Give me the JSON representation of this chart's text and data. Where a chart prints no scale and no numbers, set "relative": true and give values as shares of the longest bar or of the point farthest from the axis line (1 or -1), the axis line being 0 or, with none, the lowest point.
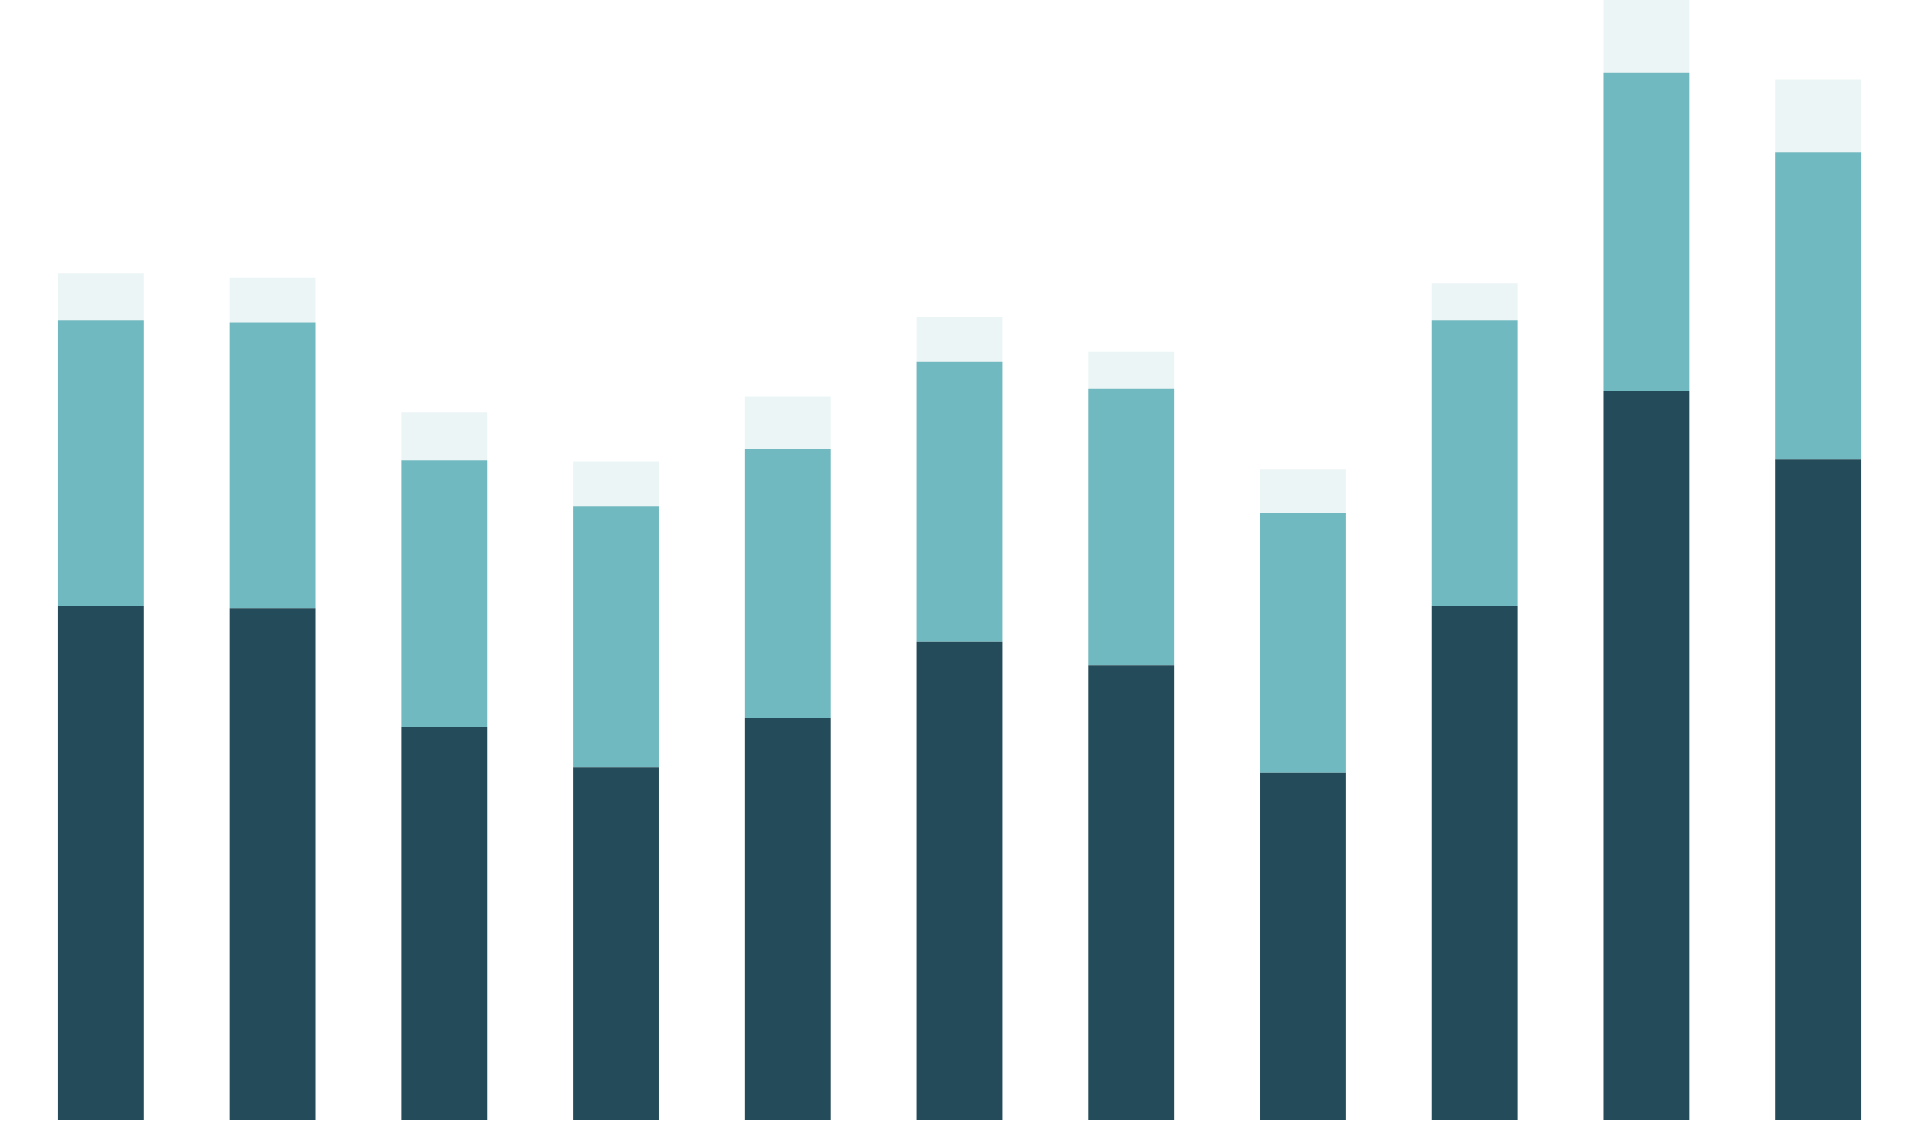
{
  "chart_data": {
    "type": "bar",
    "stacked": true,
    "relative": true,
    "categories": [
      null,
      null,
      null,
      null,
      null,
      null,
      null,
      null,
      null,
      null,
      null
    ],
    "series": [
      {
        "color": "#244b5a",
        "values": [
          0.459,
          0.457,
          0.351,
          0.315,
          0.359,
          0.427,
          0.406,
          0.31,
          0.459,
          0.651,
          0.59
        ]
      },
      {
        "color": "#70b9c0",
        "values": [
          0.255,
          0.255,
          0.238,
          0.233,
          0.24,
          0.25,
          0.247,
          0.232,
          0.255,
          0.284,
          0.274
        ]
      },
      {
        "color": "#ecf5f6",
        "values": [
          0.042,
          0.04,
          0.043,
          0.04,
          0.047,
          0.04,
          0.033,
          0.039,
          0.033,
          0.065,
          0.065
        ]
      }
    ]
  }
}
